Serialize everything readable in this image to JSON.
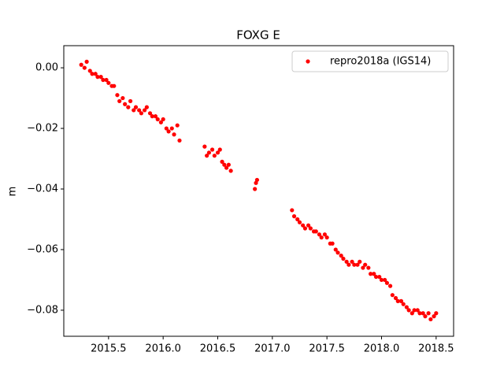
{
  "chart_data": {
    "type": "scatter",
    "title": "FOXG E",
    "y_label": "m",
    "legend": "upper right",
    "xlim": [
      2015.09,
      2018.66
    ],
    "ylim": [
      -0.0886,
      0.0073
    ],
    "xticks": [
      2015.5,
      {
        "value": 2016.0,
        "label": "2016.0"
      },
      2016.5,
      {
        "value": 2017.0,
        "label": "2017.0"
      },
      2017.5,
      {
        "value": 2018.0,
        "label": "2018.0"
      },
      2018.5
    ],
    "yticks": [
      {
        "value": 0,
        "label": "0.00"
      },
      {
        "value": -0.02,
        "label": "−0.02"
      },
      {
        "value": -0.04,
        "label": "−0.04"
      },
      {
        "value": -0.06,
        "label": "−0.06"
      },
      {
        "value": -0.08,
        "label": "−0.08"
      }
    ],
    "series": [
      {
        "name": "repro2018a (IGS14)",
        "color": "#ff0000",
        "x": [
          2015.25,
          2015.28,
          2015.3,
          2015.33,
          2015.35,
          2015.38,
          2015.4,
          2015.43,
          2015.45,
          2015.48,
          2015.5,
          2015.53,
          2015.55,
          2015.58,
          2015.6,
          2015.63,
          2015.65,
          2015.68,
          2015.7,
          2015.73,
          2015.75,
          2015.78,
          2015.8,
          2015.83,
          2015.85,
          2015.88,
          2015.9,
          2015.93,
          2015.95,
          2015.98,
          2016.0,
          2016.03,
          2016.05,
          2016.08,
          2016.1,
          2016.13,
          2016.15,
          2016.38,
          2016.4,
          2016.42,
          2016.45,
          2016.47,
          2016.5,
          2016.52,
          2016.54,
          2016.56,
          2016.58,
          2016.6,
          2016.62,
          2016.84,
          2016.85,
          2016.86,
          2017.18,
          2017.2,
          2017.23,
          2017.25,
          2017.28,
          2017.3,
          2017.33,
          2017.35,
          2017.38,
          2017.4,
          2017.43,
          2017.45,
          2017.48,
          2017.5,
          2017.53,
          2017.55,
          2017.58,
          2017.6,
          2017.63,
          2017.65,
          2017.68,
          2017.7,
          2017.73,
          2017.75,
          2017.78,
          2017.8,
          2017.83,
          2017.85,
          2017.88,
          2017.9,
          2017.93,
          2017.95,
          2017.98,
          2018.0,
          2018.03,
          2018.05,
          2018.08,
          2018.1,
          2018.13,
          2018.15,
          2018.18,
          2018.2,
          2018.23,
          2018.25,
          2018.28,
          2018.3,
          2018.33,
          2018.35,
          2018.38,
          2018.4,
          2018.43,
          2018.45,
          2018.48,
          2018.5
        ],
        "values": [
          0.001,
          0.0,
          0.002,
          -0.001,
          -0.002,
          -0.002,
          -0.003,
          -0.003,
          -0.004,
          -0.004,
          -0.005,
          -0.006,
          -0.006,
          -0.009,
          -0.011,
          -0.01,
          -0.012,
          -0.013,
          -0.011,
          -0.014,
          -0.013,
          -0.014,
          -0.015,
          -0.014,
          -0.013,
          -0.015,
          -0.016,
          -0.016,
          -0.017,
          -0.018,
          -0.017,
          -0.02,
          -0.021,
          -0.02,
          -0.022,
          -0.019,
          -0.024,
          -0.026,
          -0.029,
          -0.028,
          -0.027,
          -0.029,
          -0.028,
          -0.027,
          -0.031,
          -0.032,
          -0.033,
          -0.032,
          -0.034,
          -0.04,
          -0.038,
          -0.037,
          -0.047,
          -0.049,
          -0.05,
          -0.051,
          -0.052,
          -0.053,
          -0.052,
          -0.053,
          -0.054,
          -0.054,
          -0.055,
          -0.056,
          -0.055,
          -0.056,
          -0.058,
          -0.058,
          -0.06,
          -0.061,
          -0.062,
          -0.063,
          -0.064,
          -0.065,
          -0.064,
          -0.065,
          -0.065,
          -0.064,
          -0.066,
          -0.065,
          -0.066,
          -0.068,
          -0.068,
          -0.069,
          -0.069,
          -0.07,
          -0.07,
          -0.071,
          -0.072,
          -0.075,
          -0.076,
          -0.077,
          -0.077,
          -0.078,
          -0.079,
          -0.08,
          -0.081,
          -0.08,
          -0.08,
          -0.081,
          -0.081,
          -0.082,
          -0.081,
          -0.083,
          -0.082,
          -0.081
        ]
      }
    ]
  }
}
